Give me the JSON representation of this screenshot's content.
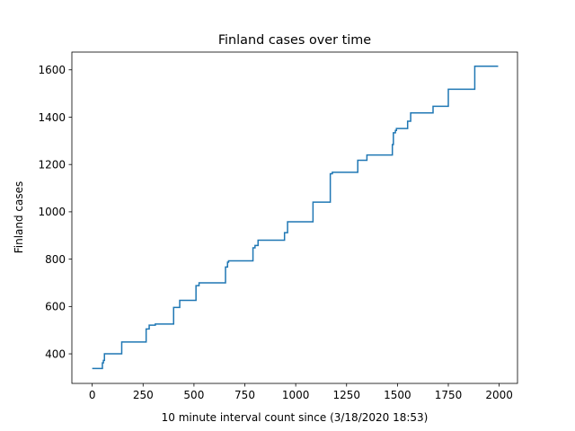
{
  "chart_data": {
    "type": "line",
    "title": "Finland cases over time",
    "xlabel": "10 minute interval count since (3/18/2020 18:53)",
    "ylabel": "Finland cases",
    "xlim": [
      -100,
      2090
    ],
    "ylim": [
      275,
      1675
    ],
    "xticks": [
      0,
      250,
      500,
      750,
      1000,
      1250,
      1500,
      1750,
      2000
    ],
    "yticks": [
      400,
      600,
      800,
      1000,
      1200,
      1400,
      1600
    ],
    "grid": false,
    "line_color": "#1f77b4",
    "series": [
      {
        "step": "post",
        "x": [
          0,
          50,
          55,
          60,
          145,
          265,
          280,
          310,
          400,
          430,
          510,
          525,
          545,
          655,
          665,
          670,
          790,
          800,
          815,
          945,
          960,
          1085,
          1170,
          1180,
          1305,
          1320,
          1350,
          1475,
          1480,
          1490,
          1495,
          1550,
          1555,
          1565,
          1675,
          1750,
          1880,
          1995
        ],
        "y": [
          338,
          362,
          372,
          400,
          450,
          505,
          521,
          526,
          596,
          626,
          688,
          700,
          700,
          767,
          787,
          793,
          848,
          858,
          880,
          912,
          958,
          1041,
          1161,
          1167,
          1218,
          1218,
          1240,
          1284,
          1334,
          1344,
          1352,
          1383,
          1383,
          1418,
          1446,
          1518,
          1615,
          1615
        ]
      }
    ]
  }
}
